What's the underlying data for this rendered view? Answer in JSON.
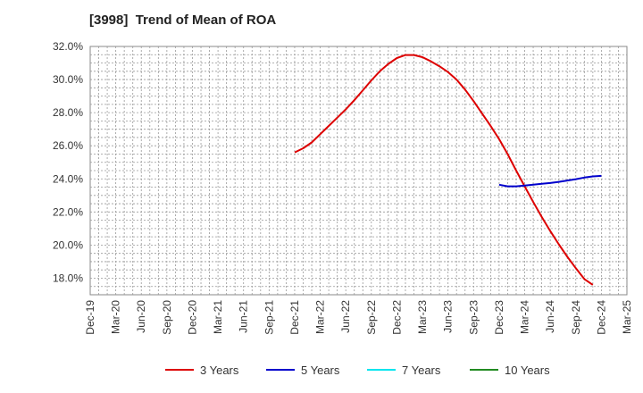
{
  "chart_data": {
    "type": "line",
    "title": "[3998]  Trend of Mean of ROA",
    "xlabel": "",
    "ylabel": "",
    "x_ticks": [
      "Dec-19",
      "Mar-20",
      "Jun-20",
      "Sep-20",
      "Dec-20",
      "Mar-21",
      "Jun-21",
      "Sep-21",
      "Dec-21",
      "Mar-22",
      "Jun-22",
      "Sep-22",
      "Dec-22",
      "Mar-23",
      "Jun-23",
      "Sep-23",
      "Dec-23",
      "Mar-24",
      "Jun-24",
      "Sep-24",
      "Dec-24",
      "Mar-25"
    ],
    "y_ticks": [
      "18.0%",
      "20.0%",
      "22.0%",
      "24.0%",
      "26.0%",
      "28.0%",
      "30.0%",
      "32.0%"
    ],
    "ylim": [
      17.0,
      32.0
    ],
    "grid": true,
    "legend_position": "bottom",
    "series": [
      {
        "name": "3 Years",
        "color": "#dd0000",
        "points": [
          [
            "Dec-21",
            25.6
          ],
          [
            "Jan-22",
            25.85
          ],
          [
            "Feb-22",
            26.2
          ],
          [
            "Mar-22",
            26.7
          ],
          [
            "Apr-22",
            27.2
          ],
          [
            "May-22",
            27.7
          ],
          [
            "Jun-22",
            28.2
          ],
          [
            "Jul-22",
            28.75
          ],
          [
            "Aug-22",
            29.35
          ],
          [
            "Sep-22",
            29.95
          ],
          [
            "Oct-22",
            30.5
          ],
          [
            "Nov-22",
            30.95
          ],
          [
            "Dec-22",
            31.3
          ],
          [
            "Jan-23",
            31.48
          ],
          [
            "Feb-23",
            31.48
          ],
          [
            "Mar-23",
            31.35
          ],
          [
            "Apr-23",
            31.1
          ],
          [
            "May-23",
            30.8
          ],
          [
            "Jun-23",
            30.45
          ],
          [
            "Jul-23",
            30.0
          ],
          [
            "Aug-23",
            29.4
          ],
          [
            "Sep-23",
            28.7
          ],
          [
            "Oct-23",
            27.95
          ],
          [
            "Nov-23",
            27.2
          ],
          [
            "Dec-23",
            26.4
          ],
          [
            "Jan-24",
            25.5
          ],
          [
            "Feb-24",
            24.5
          ],
          [
            "Mar-24",
            23.55
          ],
          [
            "Apr-24",
            22.6
          ],
          [
            "May-24",
            21.7
          ],
          [
            "Jun-24",
            20.85
          ],
          [
            "Jul-24",
            20.05
          ],
          [
            "Aug-24",
            19.3
          ],
          [
            "Sep-24",
            18.6
          ],
          [
            "Oct-24",
            17.95
          ],
          [
            "Nov-24",
            17.6
          ]
        ]
      },
      {
        "name": "5 Years",
        "color": "#0000cc",
        "points": [
          [
            "Dec-23",
            23.65
          ],
          [
            "Jan-24",
            23.55
          ],
          [
            "Feb-24",
            23.55
          ],
          [
            "Mar-24",
            23.6
          ],
          [
            "Apr-24",
            23.65
          ],
          [
            "May-24",
            23.7
          ],
          [
            "Jun-24",
            23.75
          ],
          [
            "Jul-24",
            23.82
          ],
          [
            "Aug-24",
            23.9
          ],
          [
            "Sep-24",
            23.98
          ],
          [
            "Oct-24",
            24.08
          ],
          [
            "Nov-24",
            24.15
          ],
          [
            "Dec-24",
            24.18
          ]
        ]
      },
      {
        "name": "7 Years",
        "color": "#00e5ee",
        "points": []
      },
      {
        "name": "10 Years",
        "color": "#228b22",
        "points": []
      }
    ]
  }
}
